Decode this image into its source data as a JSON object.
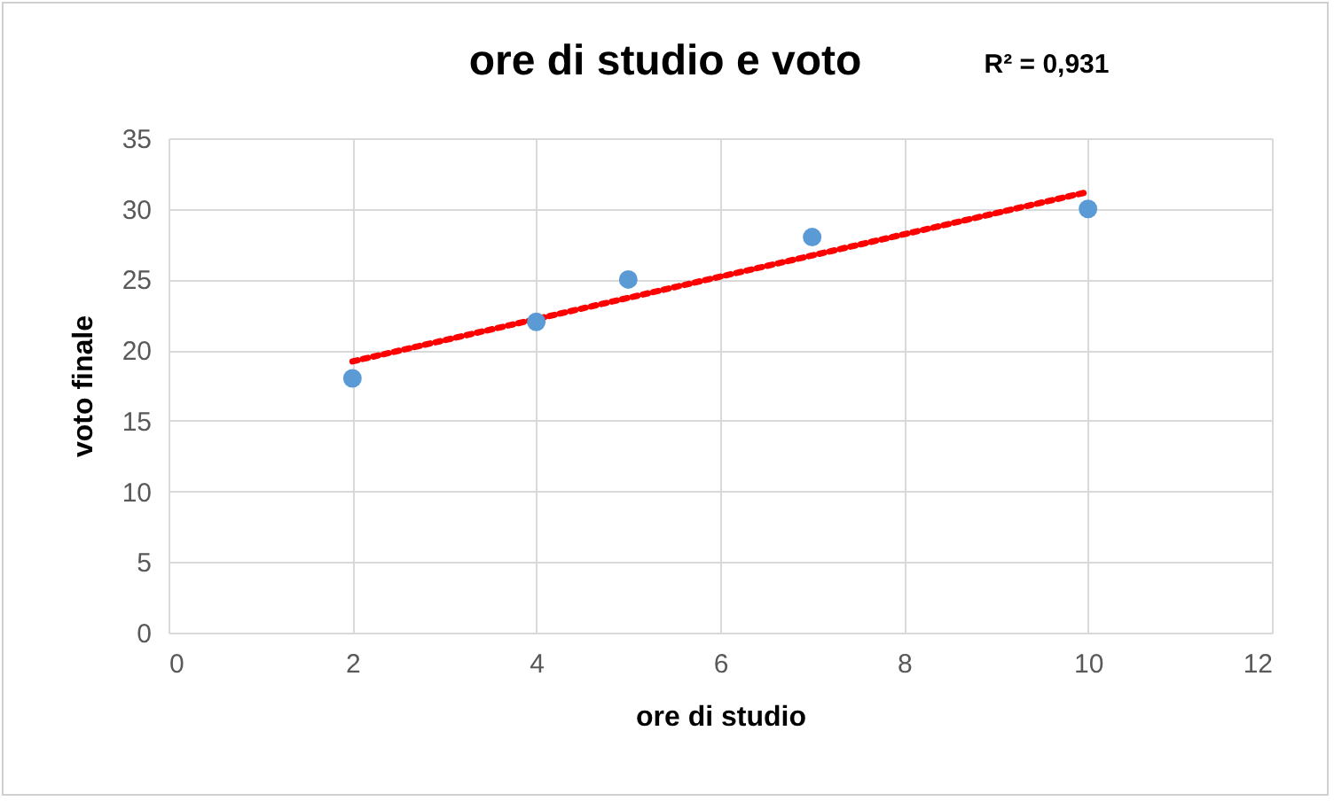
{
  "chart_data": {
    "type": "scatter",
    "title": "ore di studio e voto",
    "xlabel": "ore di studio",
    "ylabel": "voto finale",
    "annotations": [
      "R² = 0,931"
    ],
    "series": [
      {
        "color": "#5b9bd5",
        "marker": "circle",
        "x": [
          2,
          4,
          5,
          7,
          10
        ],
        "values": [
          18,
          22,
          25,
          28,
          30
        ]
      },
      {
        "type": "line",
        "color": "#ff0000",
        "line_style": "dotted",
        "x": [
          2,
          10
        ],
        "values": [
          19.2,
          31.2
        ]
      }
    ],
    "xlim": [
      0,
      12
    ],
    "xticks": [
      0,
      2,
      4,
      6,
      8,
      10,
      12
    ],
    "ylim": [
      0,
      35
    ],
    "yticks": [
      0,
      5,
      10,
      15,
      20,
      25,
      30,
      35
    ],
    "grid": true
  }
}
